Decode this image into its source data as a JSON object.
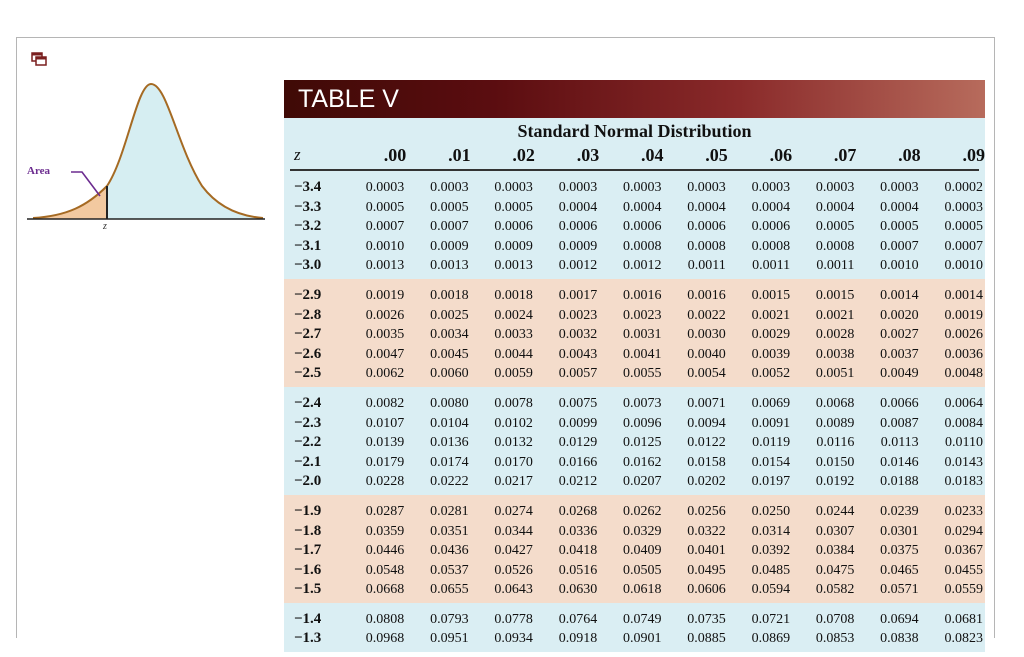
{
  "icon": {
    "popout": "popout-window-icon"
  },
  "figure": {
    "area_label": "Area",
    "z_label": "z"
  },
  "table": {
    "title": "TABLE V",
    "subtitle": "Standard Normal Distribution",
    "z_header": "z",
    "columns": [
      ".00",
      ".01",
      ".02",
      ".03",
      ".04",
      ".05",
      ".06",
      ".07",
      ".08",
      ".09"
    ],
    "colors": {
      "blue": "#daeef3",
      "peach": "#f4dccb",
      "banner": "#5b0d10"
    },
    "groups": [
      {
        "shade": "blue",
        "rows": [
          {
            "z": "−3.4",
            "values": [
              "0.0003",
              "0.0003",
              "0.0003",
              "0.0003",
              "0.0003",
              "0.0003",
              "0.0003",
              "0.0003",
              "0.0003",
              "0.0002"
            ]
          },
          {
            "z": "−3.3",
            "values": [
              "0.0005",
              "0.0005",
              "0.0005",
              "0.0004",
              "0.0004",
              "0.0004",
              "0.0004",
              "0.0004",
              "0.0004",
              "0.0003"
            ]
          },
          {
            "z": "−3.2",
            "values": [
              "0.0007",
              "0.0007",
              "0.0006",
              "0.0006",
              "0.0006",
              "0.0006",
              "0.0006",
              "0.0005",
              "0.0005",
              "0.0005"
            ]
          },
          {
            "z": "−3.1",
            "values": [
              "0.0010",
              "0.0009",
              "0.0009",
              "0.0009",
              "0.0008",
              "0.0008",
              "0.0008",
              "0.0008",
              "0.0007",
              "0.0007"
            ]
          },
          {
            "z": "−3.0",
            "values": [
              "0.0013",
              "0.0013",
              "0.0013",
              "0.0012",
              "0.0012",
              "0.0011",
              "0.0011",
              "0.0011",
              "0.0010",
              "0.0010"
            ]
          }
        ]
      },
      {
        "shade": "peach",
        "rows": [
          {
            "z": "−2.9",
            "values": [
              "0.0019",
              "0.0018",
              "0.0018",
              "0.0017",
              "0.0016",
              "0.0016",
              "0.0015",
              "0.0015",
              "0.0014",
              "0.0014"
            ]
          },
          {
            "z": "−2.8",
            "values": [
              "0.0026",
              "0.0025",
              "0.0024",
              "0.0023",
              "0.0023",
              "0.0022",
              "0.0021",
              "0.0021",
              "0.0020",
              "0.0019"
            ]
          },
          {
            "z": "−2.7",
            "values": [
              "0.0035",
              "0.0034",
              "0.0033",
              "0.0032",
              "0.0031",
              "0.0030",
              "0.0029",
              "0.0028",
              "0.0027",
              "0.0026"
            ]
          },
          {
            "z": "−2.6",
            "values": [
              "0.0047",
              "0.0045",
              "0.0044",
              "0.0043",
              "0.0041",
              "0.0040",
              "0.0039",
              "0.0038",
              "0.0037",
              "0.0036"
            ]
          },
          {
            "z": "−2.5",
            "values": [
              "0.0062",
              "0.0060",
              "0.0059",
              "0.0057",
              "0.0055",
              "0.0054",
              "0.0052",
              "0.0051",
              "0.0049",
              "0.0048"
            ]
          }
        ]
      },
      {
        "shade": "blue",
        "rows": [
          {
            "z": "−2.4",
            "values": [
              "0.0082",
              "0.0080",
              "0.0078",
              "0.0075",
              "0.0073",
              "0.0071",
              "0.0069",
              "0.0068",
              "0.0066",
              "0.0064"
            ]
          },
          {
            "z": "−2.3",
            "values": [
              "0.0107",
              "0.0104",
              "0.0102",
              "0.0099",
              "0.0096",
              "0.0094",
              "0.0091",
              "0.0089",
              "0.0087",
              "0.0084"
            ]
          },
          {
            "z": "−2.2",
            "values": [
              "0.0139",
              "0.0136",
              "0.0132",
              "0.0129",
              "0.0125",
              "0.0122",
              "0.0119",
              "0.0116",
              "0.0113",
              "0.0110"
            ]
          },
          {
            "z": "−2.1",
            "values": [
              "0.0179",
              "0.0174",
              "0.0170",
              "0.0166",
              "0.0162",
              "0.0158",
              "0.0154",
              "0.0150",
              "0.0146",
              "0.0143"
            ]
          },
          {
            "z": "−2.0",
            "values": [
              "0.0228",
              "0.0222",
              "0.0217",
              "0.0212",
              "0.0207",
              "0.0202",
              "0.0197",
              "0.0192",
              "0.0188",
              "0.0183"
            ]
          }
        ]
      },
      {
        "shade": "peach",
        "rows": [
          {
            "z": "−1.9",
            "values": [
              "0.0287",
              "0.0281",
              "0.0274",
              "0.0268",
              "0.0262",
              "0.0256",
              "0.0250",
              "0.0244",
              "0.0239",
              "0.0233"
            ]
          },
          {
            "z": "−1.8",
            "values": [
              "0.0359",
              "0.0351",
              "0.0344",
              "0.0336",
              "0.0329",
              "0.0322",
              "0.0314",
              "0.0307",
              "0.0301",
              "0.0294"
            ]
          },
          {
            "z": "−1.7",
            "values": [
              "0.0446",
              "0.0436",
              "0.0427",
              "0.0418",
              "0.0409",
              "0.0401",
              "0.0392",
              "0.0384",
              "0.0375",
              "0.0367"
            ]
          },
          {
            "z": "−1.6",
            "values": [
              "0.0548",
              "0.0537",
              "0.0526",
              "0.0516",
              "0.0505",
              "0.0495",
              "0.0485",
              "0.0475",
              "0.0465",
              "0.0455"
            ]
          },
          {
            "z": "−1.5",
            "values": [
              "0.0668",
              "0.0655",
              "0.0643",
              "0.0630",
              "0.0618",
              "0.0606",
              "0.0594",
              "0.0582",
              "0.0571",
              "0.0559"
            ]
          }
        ]
      },
      {
        "shade": "blue",
        "rows": [
          {
            "z": "−1.4",
            "values": [
              "0.0808",
              "0.0793",
              "0.0778",
              "0.0764",
              "0.0749",
              "0.0735",
              "0.0721",
              "0.0708",
              "0.0694",
              "0.0681"
            ]
          },
          {
            "z": "−1.3",
            "values": [
              "0.0968",
              "0.0951",
              "0.0934",
              "0.0918",
              "0.0901",
              "0.0885",
              "0.0869",
              "0.0853",
              "0.0838",
              "0.0823"
            ]
          }
        ]
      }
    ]
  }
}
